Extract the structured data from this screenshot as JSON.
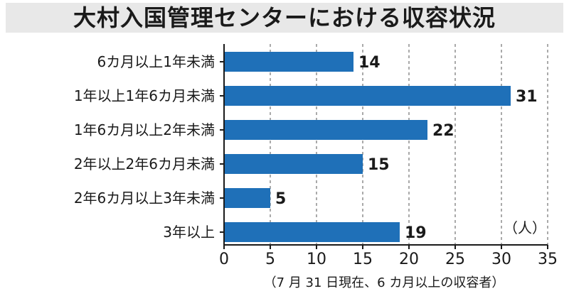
{
  "title": "大村入国管理センターにおける収容状況",
  "note": "（7 月 31 日現在、6 カ月以上の収容者）",
  "chart_data": {
    "type": "bar",
    "orientation": "horizontal",
    "categories": [
      "6カ月以上1年未満",
      "1年以上1年6カ月未満",
      "1年6カ月以上2年未満",
      "2年以上2年6カ月未満",
      "2年6カ月以上3年未満",
      "3年以上"
    ],
    "values": [
      14,
      31,
      22,
      15,
      5,
      19
    ],
    "unit": "（人）",
    "xlim": [
      0,
      35
    ],
    "xticks": [
      0,
      5,
      10,
      15,
      20,
      25,
      30,
      35
    ],
    "grid": "vertical-dashed",
    "bar_color": "#1f70b8"
  }
}
